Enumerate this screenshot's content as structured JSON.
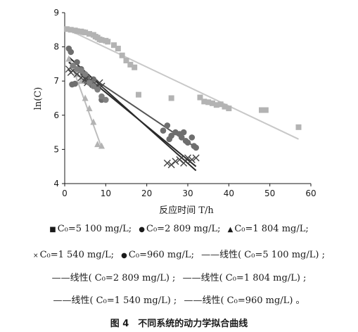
{
  "chart_data": {
    "type": "scatter",
    "xlabel": "反应时间 T/h",
    "ylabel": "ln(C)",
    "xlim": [
      0,
      60
    ],
    "ylim": [
      4,
      9
    ],
    "xticks": [
      "0",
      "10",
      "20",
      "30",
      "40",
      "50",
      "60"
    ],
    "yticks": [
      "4",
      "5",
      "6",
      "7",
      "8",
      "9"
    ],
    "grid": false,
    "series": [
      {
        "name": "C0=5 100 mg/L",
        "marker": "square",
        "color": "#b3b3b3",
        "points": [
          [
            0.5,
            8.52
          ],
          [
            1.5,
            8.5
          ],
          [
            2.5,
            8.48
          ],
          [
            3,
            8.46
          ],
          [
            4,
            8.45
          ],
          [
            4.5,
            8.43
          ],
          [
            5,
            8.42
          ],
          [
            6,
            8.38
          ],
          [
            7,
            8.35
          ],
          [
            7.5,
            8.3
          ],
          [
            8,
            8.27
          ],
          [
            8.5,
            8.22
          ],
          [
            9,
            8.2
          ],
          [
            10,
            8.18
          ],
          [
            10.5,
            8.15
          ],
          [
            12,
            8.05
          ],
          [
            13,
            7.95
          ],
          [
            14,
            7.75
          ],
          [
            15,
            7.6
          ],
          [
            16,
            7.48
          ],
          [
            17,
            7.4
          ],
          [
            18,
            6.6
          ],
          [
            26,
            6.5
          ],
          [
            33,
            6.52
          ],
          [
            34,
            6.4
          ],
          [
            35,
            6.38
          ],
          [
            36,
            6.35
          ],
          [
            37,
            6.3
          ],
          [
            38,
            6.32
          ],
          [
            39,
            6.25
          ],
          [
            40,
            6.2
          ],
          [
            48,
            6.15
          ],
          [
            49,
            6.15
          ],
          [
            57,
            5.65
          ]
        ]
      },
      {
        "name": "C0=2 809 mg/L",
        "marker": "circle",
        "color": "#6e6e6e",
        "points": [
          [
            1,
            7.95
          ],
          [
            1.5,
            7.85
          ],
          [
            1.8,
            6.9
          ],
          [
            2.5,
            6.92
          ],
          [
            3,
            7.55
          ],
          [
            4,
            7.35
          ],
          [
            4.5,
            7.2
          ],
          [
            5,
            7.0
          ],
          [
            5.5,
            7.1
          ],
          [
            6,
            6.95
          ],
          [
            6.5,
            6.9
          ],
          [
            7,
            7.05
          ],
          [
            7.5,
            6.85
          ],
          [
            8,
            6.8
          ],
          [
            9,
            6.45
          ],
          [
            24,
            5.55
          ],
          [
            25,
            5.7
          ],
          [
            25.5,
            5.3
          ],
          [
            26,
            5.4
          ],
          [
            27,
            5.5
          ],
          [
            28,
            5.45
          ],
          [
            28.5,
            5.35
          ],
          [
            29,
            5.5
          ],
          [
            29.5,
            5.25
          ],
          [
            30,
            5.2
          ],
          [
            31,
            5.35
          ],
          [
            31.5,
            5.1
          ],
          [
            32,
            5.05
          ]
        ]
      },
      {
        "name": "C0=1 804 mg/L",
        "marker": "triangle",
        "color": "#b3b3b3",
        "points": [
          [
            1,
            7.65
          ],
          [
            3,
            7.2
          ],
          [
            4,
            7.0
          ],
          [
            5,
            6.5
          ],
          [
            6,
            6.2
          ],
          [
            7,
            5.8
          ],
          [
            8,
            5.15
          ],
          [
            9,
            5.1
          ]
        ]
      },
      {
        "name": "C0=1 540 mg/L",
        "marker": "x",
        "color": "#444444",
        "points": [
          [
            1,
            7.35
          ],
          [
            1.5,
            7.25
          ],
          [
            2,
            7.3
          ],
          [
            3,
            7.2
          ],
          [
            4,
            7.1
          ],
          [
            4.5,
            7.15
          ],
          [
            5,
            7.05
          ],
          [
            5.5,
            6.95
          ],
          [
            6,
            7.0
          ],
          [
            7,
            6.9
          ],
          [
            8,
            6.85
          ],
          [
            8.5,
            6.95
          ],
          [
            9,
            6.85
          ],
          [
            25,
            4.6
          ],
          [
            26,
            4.55
          ],
          [
            27,
            4.65
          ],
          [
            28,
            4.7
          ],
          [
            29,
            4.6
          ],
          [
            30,
            4.75
          ],
          [
            31,
            4.7
          ],
          [
            32,
            4.75
          ]
        ]
      },
      {
        "name": "C0=960 mg/L",
        "marker": "circle",
        "color": "#808080",
        "points": [
          [
            2,
            7.45
          ],
          [
            3,
            7.35
          ],
          [
            4,
            7.3
          ],
          [
            5,
            7.2
          ],
          [
            6,
            6.95
          ],
          [
            7,
            6.85
          ],
          [
            8,
            6.75
          ],
          [
            9,
            6.55
          ],
          [
            10,
            6.45
          ]
        ]
      }
    ],
    "fits": [
      {
        "name": "线性(C0=5 100 mg/L)",
        "color": "#c8c8c8",
        "x": [
          0,
          57
        ],
        "y": [
          8.55,
          5.3
        ]
      },
      {
        "name": "线性(C0=2 809 mg/L)",
        "color": "#555555",
        "x": [
          1,
          32
        ],
        "y": [
          7.55,
          5.05
        ]
      },
      {
        "name": "线性(C0=1 804 mg/L)",
        "color": "#bdbdbd",
        "x": [
          1,
          9
        ],
        "y": [
          7.7,
          5.05
        ]
      },
      {
        "name": "线性(C0=1 540 mg/L)",
        "color": "#2a2a2a",
        "x": [
          1,
          32
        ],
        "y": [
          7.7,
          4.38
        ]
      },
      {
        "name": "线性(C0=960 mg/L)",
        "color": "#2a2a2a",
        "x": [
          1,
          32
        ],
        "y": [
          7.55,
          4.5
        ]
      }
    ]
  },
  "legend": {
    "row1": {
      "e1": "C₀=5 100 mg/L;",
      "e2": "C₀=2 809 mg/L;",
      "e3": "C₀=1 804 mg/L;"
    },
    "row2": {
      "e4": "C₀=1 540 mg/L;",
      "e5": "C₀=960 mg/L;",
      "e6": "——线性( C₀=5 100 mg/L) ;"
    },
    "row3": {
      "e7": "——线性( C₀=2 809 mg/L) ;",
      "e8": "——线性( C₀=1 804 mg/L) ;"
    },
    "row4": {
      "e9": "——线性( C₀=1 540 mg/L) ;",
      "e10": "——线性( C₀=960 mg/L) 。"
    }
  },
  "caption": "图 4　不同系统的动力学拟合曲线"
}
